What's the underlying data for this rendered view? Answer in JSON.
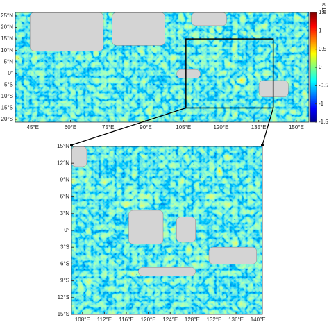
{
  "maps": [
    {
      "xlim": [
        38,
        155
      ],
      "ylim": [
        -21.2,
        26.5
      ],
      "xticks": [
        {
          "value": 45,
          "label": "45°E"
        },
        {
          "value": 60,
          "label": "60°E"
        },
        {
          "value": 75,
          "label": "75°E"
        },
        {
          "value": 90,
          "label": "90°E"
        },
        {
          "value": 105,
          "label": "105°E"
        },
        {
          "value": 120,
          "label": "120°E"
        },
        {
          "value": 135,
          "label": "135°E"
        },
        {
          "value": 150,
          "label": "150°E"
        }
      ],
      "yticks": [
        {
          "value": 25,
          "label": "25°N"
        },
        {
          "value": 20,
          "label": "20°N"
        },
        {
          "value": 15,
          "label": "15°N"
        },
        {
          "value": 10,
          "label": "10°N"
        },
        {
          "value": 5,
          "label": "5°N"
        },
        {
          "value": 0,
          "label": "0°"
        },
        {
          "value": -5,
          "label": "5°S"
        },
        {
          "value": -10,
          "label": "10°S"
        },
        {
          "value": -15,
          "label": "15°S"
        },
        {
          "value": -20,
          "label": "20°S"
        }
      ]
    },
    {
      "xlim": [
        106,
        140.8
      ],
      "ylim": [
        -15,
        15
      ],
      "xticks": [
        {
          "value": 108,
          "label": "108°E"
        },
        {
          "value": 112,
          "label": "112°E"
        },
        {
          "value": 116,
          "label": "116°E"
        },
        {
          "value": 120,
          "label": "120°E"
        },
        {
          "value": 124,
          "label": "124°E"
        },
        {
          "value": 128,
          "label": "128°E"
        },
        {
          "value": 132,
          "label": "132°E"
        },
        {
          "value": 136,
          "label": "136°E"
        },
        {
          "value": 140,
          "label": "140°E"
        }
      ],
      "yticks": [
        {
          "value": 15,
          "label": "15°N"
        },
        {
          "value": 12,
          "label": "12°N"
        },
        {
          "value": 9,
          "label": "9°N"
        },
        {
          "value": 6,
          "label": "6°N"
        },
        {
          "value": 3,
          "label": "3°N"
        },
        {
          "value": 0,
          "label": "0°"
        },
        {
          "value": -3,
          "label": "3°S"
        },
        {
          "value": -6,
          "label": "6°S"
        },
        {
          "value": -9,
          "label": "9°S"
        },
        {
          "value": -12,
          "label": "12°S"
        },
        {
          "value": -15,
          "label": "15°S"
        }
      ]
    }
  ],
  "colorbar": {
    "label": "x 10",
    "ylim": [
      -1.5,
      1.5
    ],
    "ticks": [
      1.5,
      1,
      0.5,
      0,
      -0.5,
      -1,
      -1.5
    ]
  }
}
